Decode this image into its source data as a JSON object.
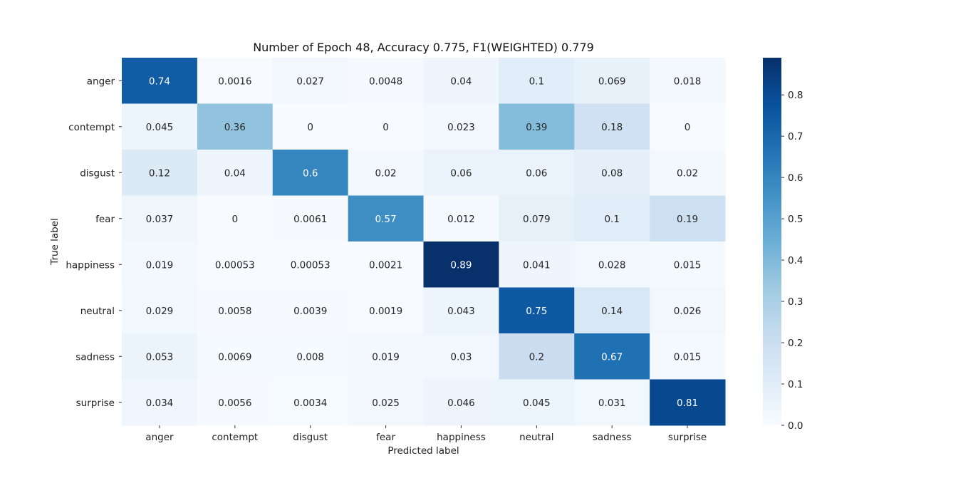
{
  "chart_data": {
    "type": "heatmap",
    "title": "Number of Epoch 48, Accuracy 0.775, F1(WEIGHTED) 0.779",
    "xlabel": "Predicted label",
    "ylabel": "True label",
    "x_categories": [
      "anger",
      "contempt",
      "disgust",
      "fear",
      "happiness",
      "neutral",
      "sadness",
      "surprise"
    ],
    "y_categories": [
      "anger",
      "contempt",
      "disgust",
      "fear",
      "happiness",
      "neutral",
      "sadness",
      "surprise"
    ],
    "values": [
      [
        0.74,
        0.0016,
        0.027,
        0.0048,
        0.04,
        0.1,
        0.069,
        0.018
      ],
      [
        0.045,
        0.36,
        0,
        0,
        0.023,
        0.39,
        0.18,
        0
      ],
      [
        0.12,
        0.04,
        0.6,
        0.02,
        0.06,
        0.06,
        0.08,
        0.02
      ],
      [
        0.037,
        0,
        0.0061,
        0.57,
        0.012,
        0.079,
        0.1,
        0.19
      ],
      [
        0.019,
        0.00053,
        0.00053,
        0.0021,
        0.89,
        0.041,
        0.028,
        0.015
      ],
      [
        0.029,
        0.0058,
        0.0039,
        0.0019,
        0.043,
        0.75,
        0.14,
        0.026
      ],
      [
        0.053,
        0.0069,
        0.008,
        0.019,
        0.03,
        0.2,
        0.67,
        0.015
      ],
      [
        0.034,
        0.0056,
        0.0034,
        0.025,
        0.046,
        0.045,
        0.031,
        0.81
      ]
    ],
    "colormap": "Blues",
    "colorbar": {
      "range": [
        0,
        0.89
      ],
      "ticks": [
        "0.0",
        "0.1",
        "0.2",
        "0.3",
        "0.4",
        "0.5",
        "0.6",
        "0.7",
        "0.8"
      ]
    },
    "grid": false,
    "legend": "colorbar-right"
  }
}
